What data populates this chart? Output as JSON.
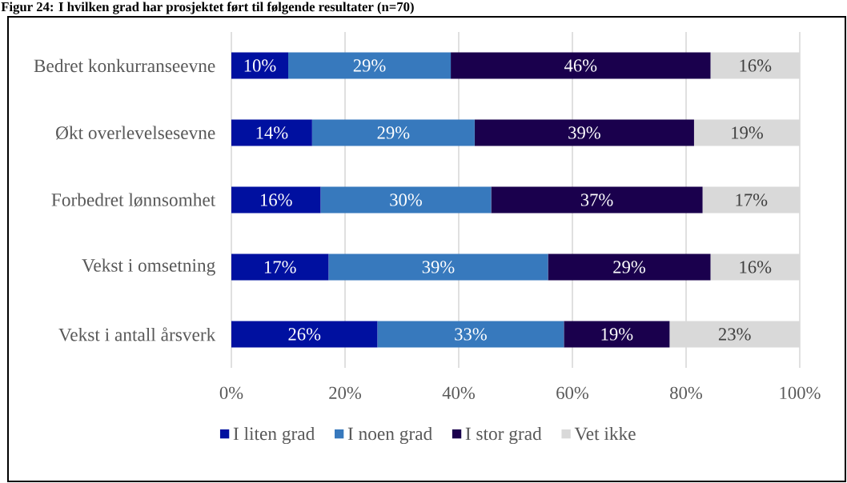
{
  "chart_data": {
    "type": "bar",
    "orientation": "horizontal",
    "stacked": true,
    "title": "Figur 24: I hvilken grad har prosjektet ført til følgende resultater (n=70)",
    "categories": [
      "Bedret konkurranseevne",
      "Økt overlevelsesevne",
      "Forbedret lønnsomhet",
      "Vekst i omsetning",
      "Vekst i antall årsverk"
    ],
    "series": [
      {
        "name": "I liten grad",
        "color": "#0010a0",
        "values": [
          10.0,
          14.2,
          15.7,
          17.1,
          25.7
        ],
        "value_labels": [
          "10%",
          "14%",
          "16%",
          "17%",
          "26%"
        ]
      },
      {
        "name": "I noen grad",
        "color": "#3779bd",
        "values": [
          28.6,
          28.6,
          30.0,
          38.6,
          32.8
        ],
        "value_labels": [
          "29%",
          "29%",
          "30%",
          "39%",
          "33%"
        ]
      },
      {
        "name": "I stor grad",
        "color": "#1a004d",
        "values": [
          45.7,
          38.6,
          37.2,
          28.6,
          18.6
        ],
        "value_labels": [
          "46%",
          "39%",
          "37%",
          "29%",
          "19%"
        ]
      },
      {
        "name": "Vet ikke",
        "color": "#d9d9d9",
        "values": [
          15.7,
          18.6,
          17.1,
          15.7,
          22.9
        ],
        "value_labels": [
          "16%",
          "19%",
          "17%",
          "16%",
          "23%"
        ]
      }
    ],
    "xlim": [
      0,
      100
    ],
    "xticks": [
      {
        "value": 0,
        "label": "0%"
      },
      {
        "value": 20,
        "label": "20%"
      },
      {
        "value": 40,
        "label": "40%"
      },
      {
        "value": 60,
        "label": "60%"
      },
      {
        "value": 80,
        "label": "80%"
      },
      {
        "value": 100,
        "label": "100%"
      }
    ],
    "grid": "x",
    "legend": "bottom"
  }
}
